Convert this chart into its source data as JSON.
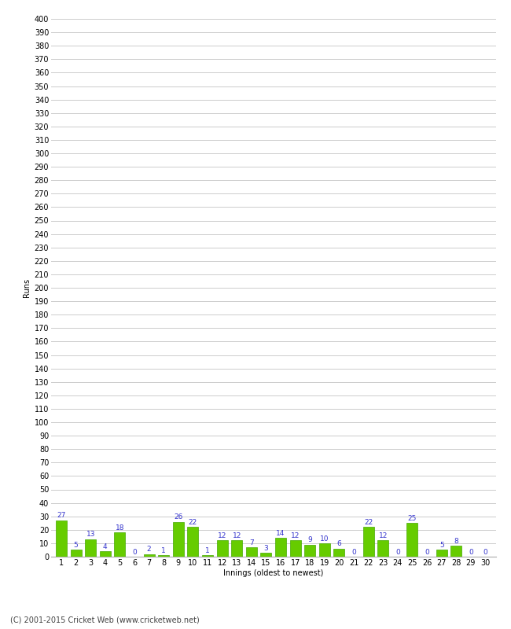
{
  "values": [
    27,
    5,
    13,
    4,
    18,
    0,
    2,
    1,
    26,
    22,
    1,
    12,
    12,
    7,
    3,
    14,
    12,
    9,
    10,
    6,
    0,
    22,
    12,
    0,
    25,
    0,
    5,
    8,
    0,
    0
  ],
  "innings": [
    1,
    2,
    3,
    4,
    5,
    6,
    7,
    8,
    9,
    10,
    11,
    12,
    13,
    14,
    15,
    16,
    17,
    18,
    19,
    20,
    21,
    22,
    23,
    24,
    25,
    26,
    27,
    28,
    29,
    30
  ],
  "bar_color": "#66cc00",
  "bar_edge_color": "#44aa00",
  "label_color": "#3333cc",
  "ylabel": "Runs",
  "xlabel": "Innings (oldest to newest)",
  "ylim": [
    0,
    400
  ],
  "ytick_step": 10,
  "grid_color": "#cccccc",
  "background_color": "#ffffff",
  "footer": "(C) 2001-2015 Cricket Web (www.cricketweb.net)",
  "label_fontsize": 6.5,
  "axis_fontsize": 7,
  "ylabel_fontsize": 7,
  "footer_fontsize": 7
}
